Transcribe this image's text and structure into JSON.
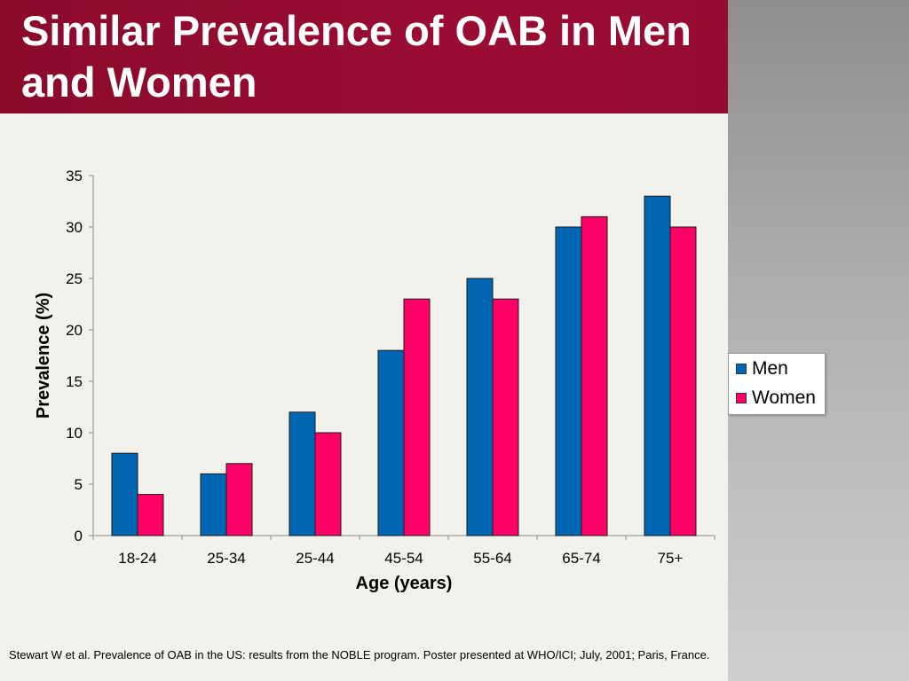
{
  "slide": {
    "title": "Similar Prevalence of OAB in Men and Women",
    "citation": "Stewart W et al. Prevalence of OAB in the US: results from the  NOBLE program.  Poster presented at WHO/ICI; July, 2001; Paris, France."
  },
  "colors": {
    "banner": "#960b30",
    "men": "#0066b3",
    "women": "#ff0066"
  },
  "chart_data": {
    "type": "bar",
    "xlabel": "Age (years)",
    "ylabel": "Prevalence (%)",
    "ylim": [
      0,
      35
    ],
    "yticks": [
      0,
      5,
      10,
      15,
      20,
      25,
      30,
      35
    ],
    "grid": false,
    "legend_position": "right",
    "categories": [
      "18-24",
      "25-34",
      "25-44",
      "45-54",
      "55-64",
      "65-74",
      "75+"
    ],
    "series": [
      {
        "name": "Men",
        "color": "#0066b3",
        "values": [
          8,
          6,
          12,
          18,
          25,
          30,
          33
        ]
      },
      {
        "name": "Women",
        "color": "#ff0066",
        "values": [
          4,
          7,
          10,
          23,
          23,
          31,
          30
        ]
      }
    ]
  }
}
